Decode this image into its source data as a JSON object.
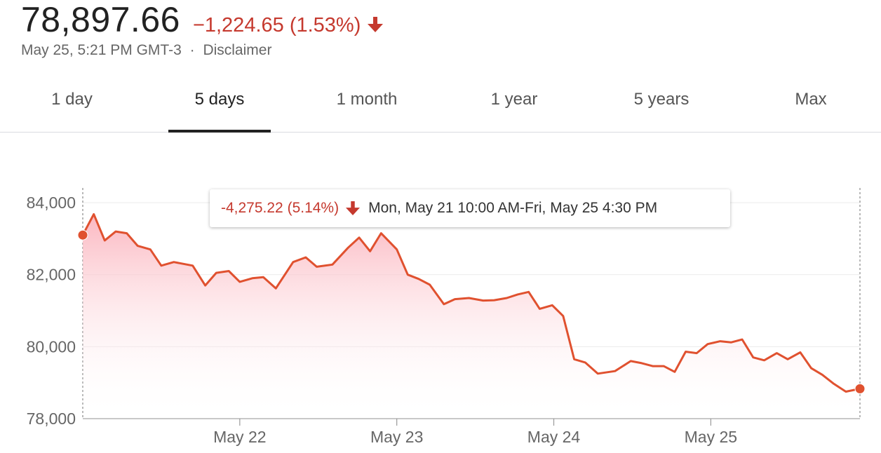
{
  "header": {
    "price": "78,897.66",
    "change": "−1,224.65 (1.53%)",
    "timestamp": "May 25, 5:21 PM GMT-3",
    "separator": "·",
    "disclaimer": "Disclaimer"
  },
  "tabs": [
    {
      "label": "1 day",
      "active": false
    },
    {
      "label": "5 days",
      "active": true
    },
    {
      "label": "1 month",
      "active": false
    },
    {
      "label": "1 year",
      "active": false
    },
    {
      "label": "5 years",
      "active": false
    },
    {
      "label": "Max",
      "active": false
    }
  ],
  "tooltip": {
    "change": "-4,275.22 (5.14%)",
    "range": "Mon, May 21 10:00 AM-Fri, May 25 4:30 PM"
  },
  "colors": {
    "negative": "#c5392e",
    "line": "#e0512f",
    "fill_top": "#fbb3bd",
    "grid": "#ebebeb"
  },
  "icons": {
    "change_direction": "arrow-down-icon"
  },
  "chart_data": {
    "type": "area",
    "title": "",
    "xlabel": "",
    "ylabel": "",
    "ylim": [
      78000,
      84000
    ],
    "yticks": [
      84000,
      82000,
      80000,
      78000
    ],
    "ytick_labels": [
      "84,000",
      "82,000",
      "80,000",
      "78,000"
    ],
    "xticks": [
      {
        "value": 10,
        "label": "May 22"
      },
      {
        "value": 20,
        "label": "May 23"
      },
      {
        "value": 30,
        "label": "May 24"
      },
      {
        "value": 40,
        "label": "May 25"
      }
    ],
    "x_start_label": "Mon, May 21 10:00 AM",
    "x_end_label": "Fri, May 25 4:30 PM",
    "x_max": 49.5,
    "grid": true,
    "series": [
      {
        "x": [
          0,
          0.7,
          1.4,
          2.1,
          2.8,
          3.5,
          4.3,
          5.0,
          5.8,
          7.0,
          7.8,
          8.5,
          9.3,
          10.0,
          10.8,
          11.5,
          12.3,
          13.4,
          14.2,
          14.9,
          15.9,
          16.9,
          17.6,
          18.3,
          19.0,
          20.0,
          20.7,
          21.4,
          22.1,
          23.0,
          23.7,
          24.6,
          25.5,
          26.2,
          27.0,
          27.7,
          28.4,
          29.1,
          29.9,
          30.6,
          31.3,
          32.0,
          32.8,
          33.9,
          34.9,
          35.6,
          36.3,
          37.0,
          37.7,
          38.4,
          39.1,
          39.8,
          40.6,
          41.3,
          42.0,
          42.7,
          43.4,
          44.2,
          44.9,
          45.7,
          46.4,
          47.1,
          47.8,
          48.6,
          49.5
        ],
        "y": [
          83100,
          83680,
          82950,
          83200,
          83150,
          82800,
          82700,
          82250,
          82350,
          82250,
          81700,
          82050,
          82100,
          81800,
          81900,
          81930,
          81620,
          82350,
          82480,
          82220,
          82280,
          82750,
          83030,
          82650,
          83150,
          82700,
          82000,
          81880,
          81720,
          81180,
          81320,
          81350,
          81280,
          81290,
          81350,
          81450,
          81520,
          81050,
          81150,
          80850,
          79650,
          79560,
          79250,
          79320,
          79600,
          79540,
          79460,
          79460,
          79300,
          79860,
          79820,
          80070,
          80150,
          80120,
          80200,
          79700,
          79620,
          79820,
          79650,
          79840,
          79400,
          79220,
          78980,
          78750,
          78830
        ]
      }
    ]
  }
}
